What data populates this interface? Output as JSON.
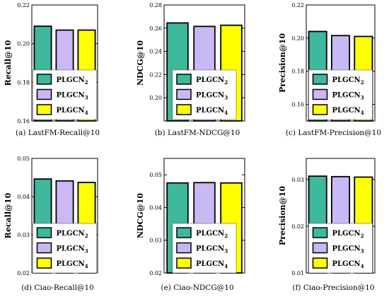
{
  "colors": {
    "green": "#3db89a",
    "purple": "#c9b8f5",
    "yellow": "#ffff00"
  },
  "chart_data": [
    {
      "type": "bar",
      "caption": "(a) LastFM-Recall@10",
      "ylabel": "Recall@10",
      "ylim": [
        0.16,
        0.22
      ],
      "yticks": [
        "0.16",
        "0.18",
        "0.20",
        "0.22"
      ],
      "legend": "inside-bottom-center",
      "series": [
        {
          "name": "PLGCN",
          "sub": "2",
          "value": 0.209
        },
        {
          "name": "PLGCN",
          "sub": "3",
          "value": 0.207
        },
        {
          "name": "PLGCN",
          "sub": "4",
          "value": 0.207
        }
      ]
    },
    {
      "type": "bar",
      "caption": "(b) LastFM-NDCG@10",
      "ylabel": "NDCG@10",
      "ylim": [
        0.18,
        0.28
      ],
      "yticks": [
        "0.20",
        "0.22",
        "0.24",
        "0.26",
        "0.28"
      ],
      "legend": "inside-bottom-center",
      "series": [
        {
          "name": "PLGCN",
          "sub": "2",
          "value": 0.2645
        },
        {
          "name": "PLGCN",
          "sub": "3",
          "value": 0.2615
        },
        {
          "name": "PLGCN",
          "sub": "4",
          "value": 0.2625
        }
      ]
    },
    {
      "type": "bar",
      "caption": "(c) LastFM-Precision@10",
      "ylabel": "Precision@10",
      "ylim": [
        0.15,
        0.22
      ],
      "yticks": [
        "0.16",
        "0.18",
        "0.20",
        "0.22"
      ],
      "legend": "inside-bottom-center",
      "series": [
        {
          "name": "PLGCN",
          "sub": "2",
          "value": 0.204
        },
        {
          "name": "PLGCN",
          "sub": "3",
          "value": 0.2015
        },
        {
          "name": "PLGCN",
          "sub": "4",
          "value": 0.201
        }
      ]
    },
    {
      "type": "bar",
      "caption": "(d) Ciao-Recall@10",
      "ylabel": "Recall@10",
      "ylim": [
        0.02,
        0.05
      ],
      "yticks": [
        "0.02",
        "0.03",
        "0.04",
        "0.05"
      ],
      "legend": "inside-bottom-center",
      "series": [
        {
          "name": "PLGCN",
          "sub": "2",
          "value": 0.0446
        },
        {
          "name": "PLGCN",
          "sub": "3",
          "value": 0.0441
        },
        {
          "name": "PLGCN",
          "sub": "4",
          "value": 0.0437
        }
      ]
    },
    {
      "type": "bar",
      "caption": "(e) Ciao-NDCG@10",
      "ylabel": "NDCG@10",
      "ylim": [
        0.02,
        0.055
      ],
      "yticks": [
        "0.02",
        "0.03",
        "0.04",
        "0.05"
      ],
      "legend": "inside-bottom-center",
      "series": [
        {
          "name": "PLGCN",
          "sub": "2",
          "value": 0.0475
        },
        {
          "name": "PLGCN",
          "sub": "3",
          "value": 0.0476
        },
        {
          "name": "PLGCN",
          "sub": "4",
          "value": 0.0475
        }
      ]
    },
    {
      "type": "bar",
      "caption": "(f) Ciao-Precision@10",
      "ylabel": "Precision@10",
      "ylim": [
        0.01,
        0.0345
      ],
      "yticks": [
        "0.01",
        "0.02",
        "0.03"
      ],
      "legend": "inside-bottom-center",
      "series": [
        {
          "name": "PLGCN",
          "sub": "2",
          "value": 0.0307
        },
        {
          "name": "PLGCN",
          "sub": "3",
          "value": 0.0306
        },
        {
          "name": "PLGCN",
          "sub": "4",
          "value": 0.0305
        }
      ]
    }
  ]
}
